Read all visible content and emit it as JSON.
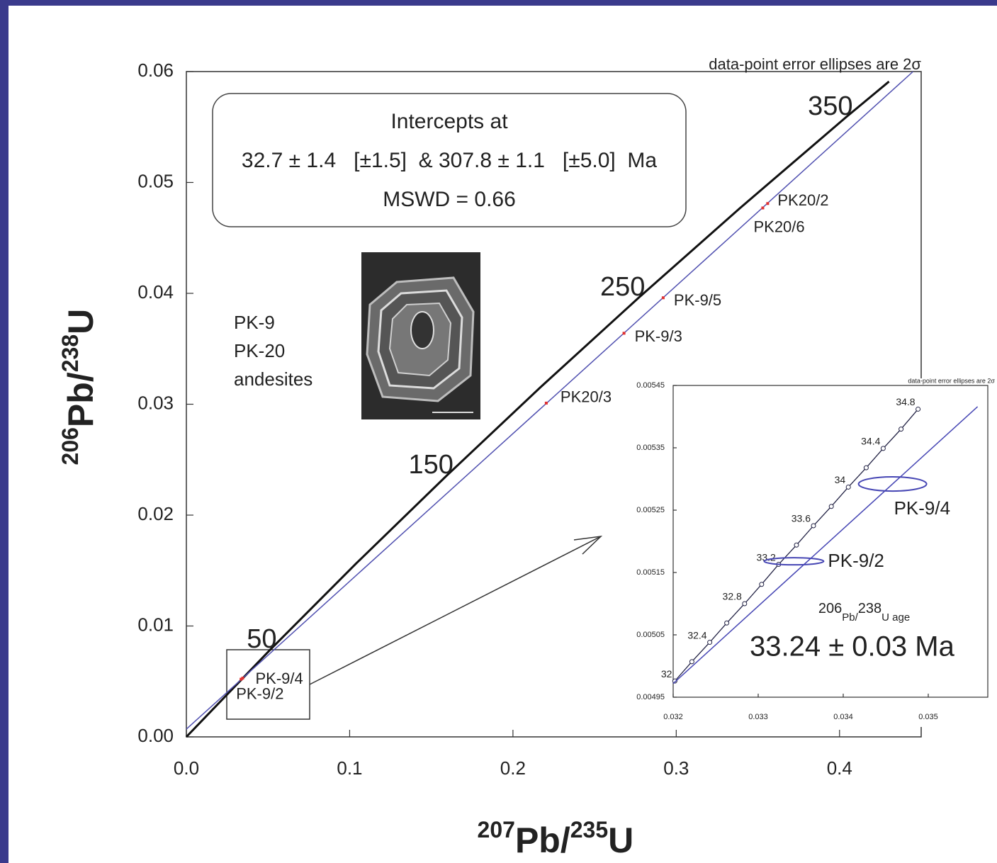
{
  "chart_data": [
    {
      "type": "line",
      "note": "data-point error ellipses are 2σ",
      "intercepts": [
        "Intercepts at",
        "32.7 ± 1.4   [±1.5]  & 307.8 ± 1.1   [±5.0]  Ma",
        "MSWD = 0.66"
      ],
      "samples": [
        "PK-9",
        "PK-20",
        "andesites"
      ],
      "x_label": [
        "207",
        "Pb/",
        "235",
        "U"
      ],
      "y_label": [
        "206",
        "Pb/",
        "238",
        "U"
      ],
      "xlim": [
        0,
        0.45
      ],
      "ylim": [
        0,
        0.06
      ],
      "xticks": [
        {
          "value": 0,
          "label": "0.0"
        },
        0.1,
        0.2,
        0.3,
        0.4
      ],
      "yticks": [
        {
          "value": 0,
          "label": "0.00"
        },
        0.01,
        0.02,
        0.03,
        0.04,
        0.05,
        0.06
      ],
      "series": [
        {
          "color": "#111111",
          "x": [
            0,
            0.051,
            0.104,
            0.1592,
            0.2167,
            0.2766,
            0.3389,
            0.4038,
            0.4303
          ],
          "values": [
            0,
            0.00781,
            0.01564,
            0.02353,
            0.03151,
            0.03955,
            0.04767,
            0.05586,
            0.0591
          ],
          "age_labels": [
            null,
            50,
            null,
            150,
            null,
            250,
            null,
            350,
            null
          ]
        },
        {
          "color": "#5050b0",
          "x": [
            0,
            0.445
          ],
          "values": [
            0.0007,
            0.06
          ]
        }
      ],
      "points": {
        "color": "#e03030",
        "labels": [
          "PK-9/2",
          "PK-9/4",
          "PK20/3",
          "PK-9/3",
          "PK-9/5",
          "PK20/6",
          "PK20/2"
        ],
        "x": [
          0.0335,
          0.0345,
          0.2204,
          0.268,
          0.292,
          0.353,
          0.356
        ],
        "y": [
          0.0052,
          0.0053,
          0.0301,
          0.0364,
          0.0396,
          0.0477,
          0.0481
        ]
      }
    },
    {
      "type": "line",
      "note": "data-point error ellipses are 2σ",
      "age_title": [
        "206",
        "Pb/",
        "238",
        "U age"
      ],
      "age_result": "33.24 ± 0.03 Ma",
      "xlim": [
        0.032,
        0.0357
      ],
      "ylim": [
        0.00495,
        0.00545
      ],
      "xticks": [
        0.032,
        0.033,
        0.034,
        0.035
      ],
      "yticks": [
        0.00495,
        0.00505,
        0.00515,
        0.00525,
        0.00535,
        0.00545
      ],
      "series": [
        {
          "color": "#222244",
          "markers": true,
          "x": [
            0.03202,
            0.03222,
            0.03243,
            0.03263,
            0.03284,
            0.03304,
            0.03324,
            0.03345,
            0.03365,
            0.03386,
            0.03406,
            0.03427,
            0.03447,
            0.03468,
            0.03488
          ],
          "values": [
            0.004976,
            0.005007,
            0.005038,
            0.005069,
            0.0051,
            0.005131,
            0.005163,
            0.005194,
            0.005225,
            0.005256,
            0.005287,
            0.005318,
            0.005349,
            0.00538,
            0.005412
          ],
          "age_labels": [
            32,
            null,
            32.4,
            null,
            32.8,
            null,
            33.2,
            null,
            33.6,
            null,
            34,
            null,
            34.4,
            null,
            34.8
          ]
        },
        {
          "color": "#4646b4",
          "x": [
            0.032,
            0.03558
          ],
          "values": [
            0.004972,
            0.005416
          ]
        }
      ],
      "ellipses": [
        {
          "label": "PK-9/4",
          "color": "#4646b4",
          "x": 0.03458,
          "y": 0.005292,
          "sx": 0.0004,
          "sy": 1.14e-05
        },
        {
          "label": "PK-9/2",
          "color": "#4646b4",
          "x": 0.03342,
          "y": 0.005168,
          "sx": 0.00035,
          "sy": 5.7e-06
        }
      ]
    }
  ]
}
